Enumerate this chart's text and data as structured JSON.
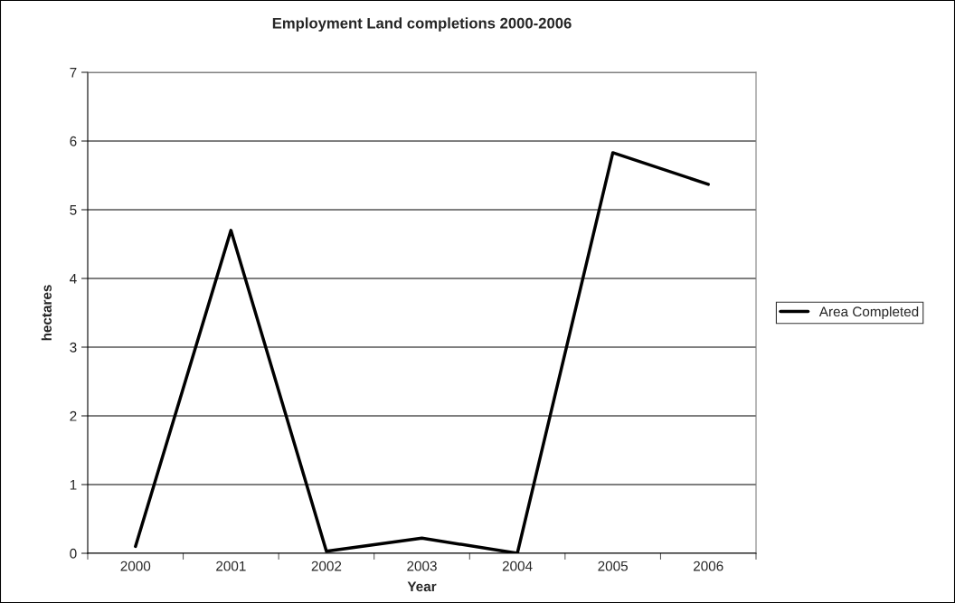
{
  "chart_data": {
    "type": "line",
    "title": "Employment Land completions 2000-2006",
    "xlabel": "Year",
    "ylabel": "hectares",
    "categories": [
      "2000",
      "2001",
      "2002",
      "2003",
      "2004",
      "2005",
      "2006"
    ],
    "series": [
      {
        "name": "Area Completed",
        "color": "#000000",
        "values": [
          0.1,
          4.7,
          0.03,
          0.22,
          0,
          5.83,
          5.37
        ]
      }
    ],
    "ylim": [
      0,
      7
    ],
    "yticks": [
      0,
      1,
      2,
      3,
      4,
      5,
      6,
      7
    ],
    "grid": "y",
    "legend": "right",
    "marker": "none",
    "line_style": "solid"
  }
}
